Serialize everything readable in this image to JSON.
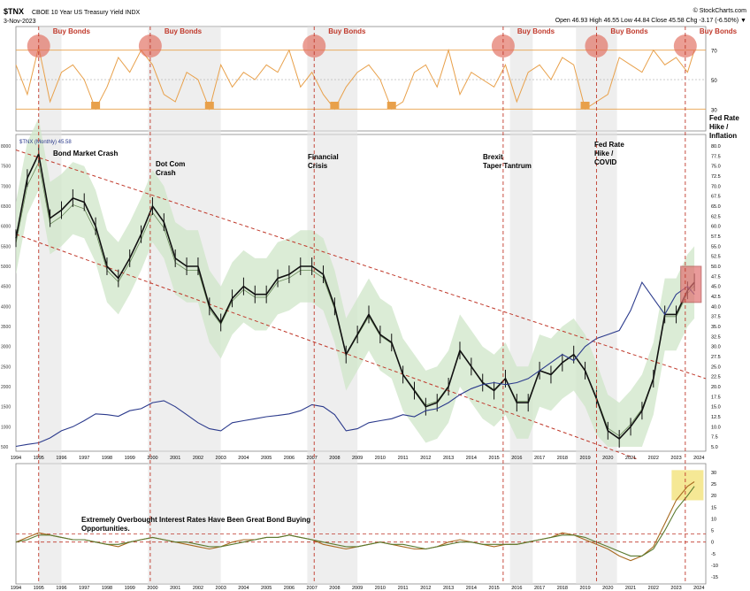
{
  "header": {
    "ticker": "$TNX",
    "name": "CBOE 10 Year US Treasury Yield INDX",
    "date": "3-Nov-2023",
    "source": "© StockCharts.com",
    "stats": "Open 46.93  High 46.55  Low 44.84  Close 45.58  Chg -3.17 (-6.50%) ▼"
  },
  "colors": {
    "rsi_line": "#e8a04a",
    "rsi_fill": "#e8a04a",
    "price_candles": "#111111",
    "overlay_line": "#2b3a8c",
    "channel_line": "#c0392b",
    "band_fill": "#cfe6c8",
    "shade_band": "#e3e3e3",
    "highlight_circle": "#e06a5a",
    "highlight_box": "#e07070",
    "yellow_box": "#f2e27a",
    "macd_line": "#a86a20",
    "macd_signal": "#5a7a30",
    "annotation_text": "#c0392b"
  },
  "top_panel": {
    "buy_labels": [
      "Buy Bonds",
      "Buy Bonds",
      "Buy Bonds",
      "Buy Bonds",
      "Buy Bonds",
      "Buy Bonds"
    ],
    "right_ticks": [
      "70",
      "50",
      "30"
    ]
  },
  "main_panel": {
    "legend": "$TNX (Monthly) 45.58",
    "events": [
      "Bond Market Crash",
      "Dot Com Crash",
      "Financial Crisis",
      "Brexit Taper Tantrum",
      "Fed Rate Hike / COVID",
      "Fed Rate Hike / Inflation"
    ],
    "left_ticks": [
      "8000",
      "7500",
      "7000",
      "6500",
      "6000",
      "5500",
      "5000",
      "4500",
      "4000",
      "3500",
      "3000",
      "2500",
      "2000",
      "1500",
      "1000",
      "500"
    ],
    "right_ticks": [
      "80.0",
      "77.5",
      "75.0",
      "72.5",
      "70.0",
      "67.5",
      "65.0",
      "62.5",
      "60.0",
      "57.5",
      "55.0",
      "52.5",
      "50.0",
      "47.5",
      "45.0",
      "42.5",
      "40.0",
      "37.5",
      "35.0",
      "32.5",
      "30.0",
      "27.5",
      "25.0",
      "22.5",
      "20.0",
      "17.5",
      "15.0",
      "12.5",
      "10.0",
      "7.5",
      "5.0"
    ]
  },
  "x_axis": {
    "years": [
      "1994",
      "1995",
      "1996",
      "1997",
      "1998",
      "1999",
      "2000",
      "2001",
      "2002",
      "2003",
      "2004",
      "2005",
      "2006",
      "2007",
      "2008",
      "2009",
      "2010",
      "2011",
      "2012",
      "2013",
      "2014",
      "2015",
      "2016",
      "2017",
      "2018",
      "2019",
      "2020",
      "2021",
      "2022",
      "2023",
      "2024"
    ],
    "bottom_years": [
      "1994",
      "1995",
      "1996",
      "1997",
      "1998",
      "1999",
      "2000",
      "2001",
      "2002",
      "2003",
      "2004",
      "2005",
      "2006",
      "2007",
      "2008",
      "2009",
      "2010",
      "2011",
      "2012",
      "2013",
      "2014",
      "2015",
      "2016",
      "2017",
      "2018",
      "2019",
      "2020",
      "2021",
      "2022",
      "2023",
      "2024"
    ]
  },
  "bottom_panel": {
    "annotation": "Extremely Overbought Interest Rates Have Been Great Bond Buying Opportunities.",
    "right_ticks": [
      "30",
      "25",
      "20",
      "15",
      "10",
      "5",
      "0",
      "-5",
      "-10",
      "-15"
    ]
  },
  "chart_data": {
    "type": "line",
    "title": "$TNX CBOE 10 Year US Treasury Yield INDX",
    "subtitle": "3-Nov-2023",
    "xlabel": "",
    "ylabel": "",
    "x": [
      1994,
      1994.5,
      1995,
      1995.5,
      1996,
      1996.5,
      1997,
      1997.5,
      1998,
      1998.5,
      1999,
      1999.5,
      2000,
      2000.5,
      2001,
      2001.5,
      2002,
      2002.5,
      2003,
      2003.5,
      2004,
      2004.5,
      2005,
      2005.5,
      2006,
      2006.5,
      2007,
      2007.5,
      2008,
      2008.5,
      2009,
      2009.5,
      2010,
      2010.5,
      2011,
      2011.5,
      2012,
      2012.5,
      2013,
      2013.5,
      2014,
      2014.5,
      2015,
      2015.5,
      2016,
      2016.5,
      2017,
      2017.5,
      2018,
      2018.5,
      2019,
      2019.5,
      2020,
      2020.5,
      2021,
      2021.5,
      2022,
      2022.5,
      2023,
      2023.5,
      2023.8
    ],
    "ylim_right": [
      5,
      80
    ],
    "ylim_left": [
      500,
      8000
    ],
    "series": [
      {
        "name": "$TNX (Monthly)",
        "values": [
          57,
          72,
          78,
          62,
          64,
          67,
          66,
          60,
          50,
          47,
          52,
          58,
          65,
          61,
          52,
          50,
          50,
          40,
          36,
          42,
          45,
          43,
          43,
          47,
          48,
          50,
          50,
          48,
          40,
          28,
          33,
          38,
          33,
          31,
          23,
          19,
          15,
          16,
          20,
          29,
          25,
          21,
          19,
          22,
          16,
          16,
          24,
          23,
          26,
          28,
          24,
          17,
          9,
          7,
          10,
          14,
          22,
          38,
          38,
          44,
          46
        ]
      },
      {
        "name": "",
        "values": [
          510,
          560,
          600,
          720,
          900,
          1000,
          1150,
          1320,
          1300,
          1260,
          1400,
          1450,
          1600,
          1650,
          1500,
          1300,
          1100,
          950,
          900,
          1100,
          1150,
          1200,
          1250,
          1280,
          1320,
          1400,
          1550,
          1500,
          1300,
          900,
          950,
          1100,
          1150,
          1200,
          1300,
          1250,
          1400,
          1450,
          1600,
          1800,
          1950,
          2050,
          2100,
          2050,
          2100,
          2200,
          2400,
          2600,
          2800,
          2650,
          3000,
          3200,
          3300,
          3400,
          3900,
          4600,
          4200,
          3800,
          4300,
          4500,
          4300
        ]
      }
    ],
    "rsi_series": [
      {
        "name": "",
        "values": [
          60,
          40,
          72,
          35,
          55,
          60,
          50,
          30,
          45,
          65,
          55,
          70,
          60,
          40,
          35,
          55,
          50,
          30,
          60,
          45,
          55,
          50,
          60,
          55,
          70,
          45,
          55,
          40,
          30,
          45,
          55,
          60,
          50,
          30,
          35,
          55,
          60,
          45,
          70,
          40,
          55,
          50,
          45,
          60,
          35,
          55,
          60,
          50,
          65,
          60,
          30,
          35,
          40,
          65,
          60,
          55,
          70,
          60,
          65,
          55,
          70
        ]
      }
    ],
    "macd_series": [
      {
        "name": "",
        "values": [
          0,
          2,
          4,
          3,
          2,
          1,
          1,
          0,
          -1,
          -2,
          0,
          1,
          2,
          1,
          0,
          -1,
          -2,
          -3,
          -2,
          0,
          1,
          1,
          2,
          2,
          3,
          2,
          1,
          -1,
          -2,
          -3,
          -2,
          -1,
          0,
          -1,
          -2,
          -3,
          -3,
          -2,
          0,
          1,
          0,
          -1,
          -2,
          -1,
          -1,
          0,
          1,
          2,
          4,
          3,
          1,
          -1,
          -3,
          -6,
          -8,
          -6,
          -2,
          8,
          18,
          24,
          26
        ]
      },
      {
        "name": "",
        "values": [
          0,
          1,
          3,
          3,
          2,
          1,
          1,
          0,
          -1,
          -1,
          0,
          1,
          2,
          1,
          0,
          0,
          -1,
          -2,
          -2,
          -1,
          0,
          1,
          2,
          2,
          3,
          2,
          1,
          0,
          -1,
          -2,
          -2,
          -1,
          0,
          -1,
          -1,
          -2,
          -3,
          -2,
          -1,
          0,
          0,
          -1,
          -1,
          -1,
          -1,
          0,
          1,
          2,
          3,
          3,
          2,
          0,
          -2,
          -4,
          -6,
          -6,
          -3,
          5,
          14,
          20,
          24
        ]
      }
    ]
  }
}
